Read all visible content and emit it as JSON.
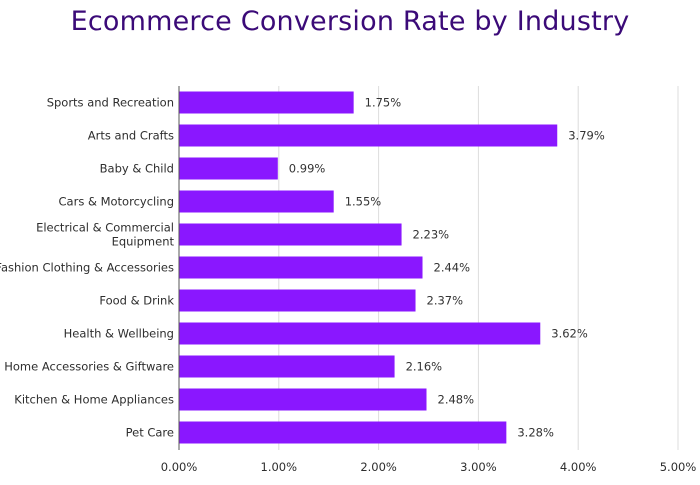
{
  "chart_data": {
    "type": "bar",
    "orientation": "horizontal",
    "title": "Ecommerce Conversion Rate by Industry",
    "xlabel": "",
    "ylabel": "",
    "categories": [
      "Sports and Recreation",
      "Arts and Crafts",
      "Baby & Child",
      "Cars & Motorcycling",
      "Electrical & Commercial Equipment",
      "Fashion Clothing & Accessories",
      "Food & Drink",
      "Health & Wellbeing",
      "Home Accessories & Giftware",
      "Kitchen & Home Appliances",
      "Pet Care"
    ],
    "category_lines": [
      [
        "Sports and Recreation"
      ],
      [
        "Arts and Crafts"
      ],
      [
        "Baby & Child"
      ],
      [
        "Cars & Motorcycling"
      ],
      [
        "Electrical & Commercial",
        "Equipment"
      ],
      [
        "Fashion Clothing & Accessories"
      ],
      [
        "Food & Drink"
      ],
      [
        "Health & Wellbeing"
      ],
      [
        "Home Accessories & Giftware"
      ],
      [
        "Kitchen & Home Appliances"
      ],
      [
        "Pet Care"
      ]
    ],
    "values": [
      1.75,
      3.79,
      0.99,
      1.55,
      2.23,
      2.44,
      2.37,
      3.62,
      2.16,
      2.48,
      3.28
    ],
    "value_labels": [
      "1.75%",
      "3.79%",
      "0.99%",
      "1.55%",
      "2.23%",
      "2.44%",
      "2.37%",
      "3.62%",
      "2.16%",
      "2.48%",
      "3.28%"
    ],
    "xlim": [
      0,
      5
    ],
    "xticks": [
      0,
      1,
      2,
      3,
      4,
      5
    ],
    "xtick_labels": [
      "0.00%",
      "1.00%",
      "2.00%",
      "3.00%",
      "4.00%",
      "5.00%"
    ],
    "grid": "vertical",
    "legend": "none",
    "colors": {
      "bar": "#8a17ff",
      "title": "#3b0a78",
      "grid": "#dcdcdc",
      "axis": "#555555"
    }
  }
}
